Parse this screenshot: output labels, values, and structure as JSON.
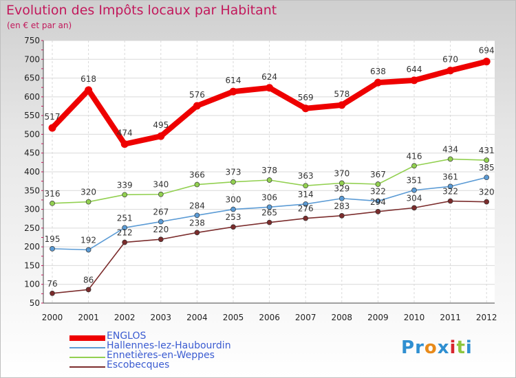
{
  "header": {
    "title": "Evolution des Impôts locaux par Habitant",
    "subtitle": "(en € et par an)"
  },
  "brand": {
    "letters": [
      "P",
      "r",
      "o",
      "x",
      "i",
      "t",
      "i"
    ],
    "colors": [
      "#2f8fd1",
      "#2f8fd1",
      "#e88a1a",
      "#2f8fd1",
      "#d7262e",
      "#8dc63f",
      "#2f8fd1"
    ]
  },
  "chart_data": {
    "type": "line",
    "x": [
      "2000",
      "2001",
      "2002",
      "2003",
      "2004",
      "2005",
      "2006",
      "2007",
      "2008",
      "2009",
      "2010",
      "2011",
      "2012"
    ],
    "ylim": [
      50,
      750
    ],
    "yticks": [
      50,
      100,
      150,
      200,
      250,
      300,
      350,
      400,
      450,
      500,
      550,
      600,
      650,
      700,
      750
    ],
    "grid": true,
    "legend_position": "bottom-left",
    "series": [
      {
        "name": "ENGLOS",
        "color": "#ee0000",
        "values": [
          517,
          618,
          474,
          495,
          576,
          614,
          624,
          569,
          578,
          638,
          644,
          670,
          694
        ],
        "emphasis": true
      },
      {
        "name": "Hallennes-lez-Haubourdin",
        "color": "#5b9bd5",
        "values": [
          195,
          192,
          251,
          267,
          284,
          300,
          306,
          314,
          329,
          322,
          351,
          361,
          385
        ]
      },
      {
        "name": "Ennetières-en-Weppes",
        "color": "#92d050",
        "values": [
          316,
          320,
          339,
          340,
          366,
          373,
          378,
          363,
          370,
          367,
          416,
          434,
          431
        ]
      },
      {
        "name": "Escobecques",
        "color": "#7b2c2c",
        "values": [
          76,
          86,
          212,
          220,
          238,
          253,
          265,
          276,
          283,
          294,
          304,
          322,
          320
        ]
      }
    ]
  }
}
